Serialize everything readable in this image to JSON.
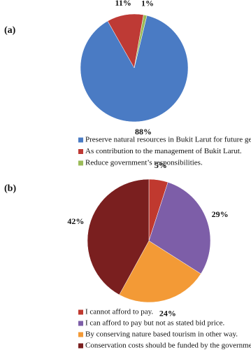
{
  "chart_data": [
    {
      "type": "pie",
      "label": "(a)",
      "categories": [
        "Preserve natural resources in Bukit Larut for future generations.",
        "As contribution to the management of Bukit Larut.",
        "Reduce government’s responsibilities."
      ],
      "values": [
        88,
        11,
        1
      ],
      "value_labels": [
        "88%",
        "11%",
        "1%"
      ],
      "colors": [
        "#4a7bc4",
        "#be3a35",
        "#9bbb59"
      ]
    },
    {
      "type": "pie",
      "label": "(b)",
      "categories": [
        "I cannot afford to pay.",
        "I can afford to pay but not as stated bid price.",
        "By conserving nature based tourism in other way.",
        "Conservation costs should be funded by the government."
      ],
      "values": [
        5,
        29,
        24,
        42
      ],
      "value_labels": [
        "5%",
        "29%",
        "24%",
        "42%"
      ],
      "colors": [
        "#c0392f",
        "#7d5ea8",
        "#f39a36",
        "#7a1f1f"
      ]
    }
  ]
}
